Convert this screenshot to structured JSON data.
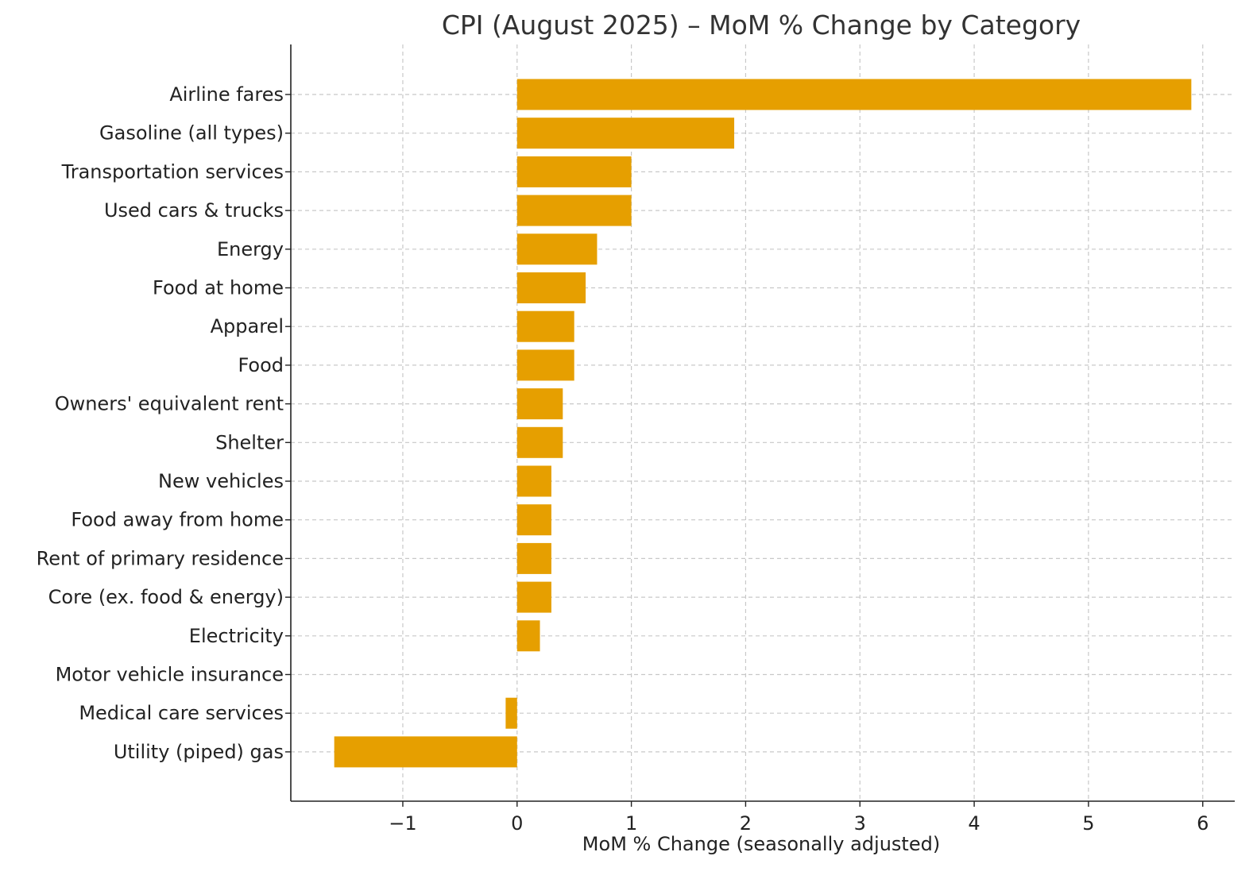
{
  "chart_data": {
    "type": "bar",
    "orientation": "horizontal",
    "title": "CPI (August 2025) – MoM % Change by Category",
    "xlabel": "MoM % Change (seasonally adjusted)",
    "ylabel": "",
    "xlim": [
      -1.98,
      6.28
    ],
    "x_ticks": [
      -1,
      0,
      1,
      2,
      3,
      4,
      5,
      6
    ],
    "x_tick_labels": [
      "−1",
      "0",
      "1",
      "2",
      "3",
      "4",
      "5",
      "6"
    ],
    "grid": true,
    "bar_color": "#E69F00",
    "categories": [
      "Airline fares",
      "Gasoline (all types)",
      "Transportation services",
      "Used cars & trucks",
      "Energy",
      "Food at home",
      "Apparel",
      "Food",
      "Owners' equivalent rent",
      "Shelter",
      "New vehicles",
      "Food away from home",
      "Rent of primary residence",
      "Core (ex. food & energy)",
      "Electricity",
      "Motor vehicle insurance",
      "Medical care services",
      "Utility (piped) gas"
    ],
    "values": [
      5.9,
      1.9,
      1.0,
      1.0,
      0.7,
      0.6,
      0.5,
      0.5,
      0.4,
      0.4,
      0.3,
      0.3,
      0.3,
      0.3,
      0.2,
      0.0,
      -0.1,
      -1.6
    ]
  }
}
